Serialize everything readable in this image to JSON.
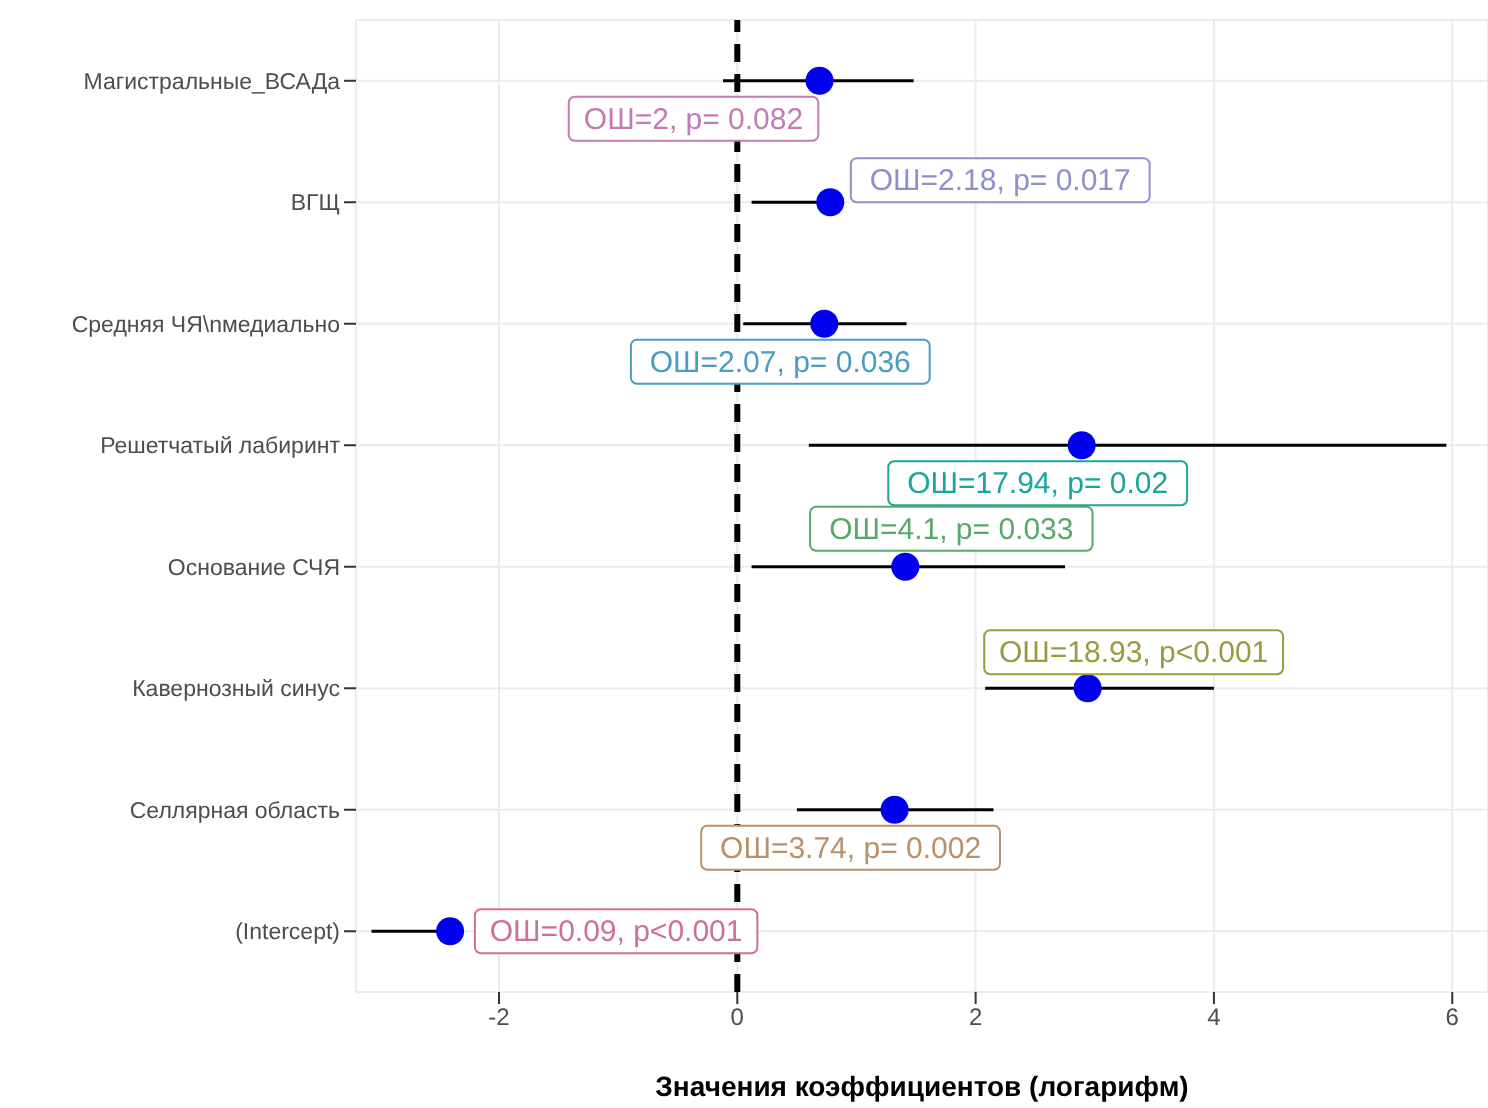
{
  "chart_data": {
    "type": "scatter",
    "orientation": "horizontal",
    "xlabel": "Значения коэффициентов (логарифм)",
    "categories": [
      "Магистральные_ВСАДа",
      "ВГЩ",
      "Средняя ЧЯ\\nмедиально",
      "Решетчатый лабиринт",
      "Основание СЧЯ",
      "Кавернозный синус",
      "Селлярная область",
      "(Intercept)"
    ],
    "values": [
      0.69,
      0.78,
      0.73,
      2.89,
      1.41,
      2.94,
      1.32,
      -2.41
    ],
    "errors": [
      [
        -0.12,
        1.48
      ],
      [
        0.12,
        0.78
      ],
      [
        0.05,
        1.42
      ],
      [
        0.6,
        5.95
      ],
      [
        0.12,
        2.75
      ],
      [
        2.08,
        4.0
      ],
      [
        0.5,
        2.15
      ],
      [
        -3.07,
        -2.41
      ]
    ],
    "color": "#0000ee",
    "marker": "circle",
    "xlim": [
      -3.2,
      6.3
    ],
    "xticks": [
      -2,
      0,
      2,
      4,
      6
    ],
    "grid": true,
    "ref_lines": [
      {
        "axis": "x",
        "value": 0,
        "color": "#000000",
        "line_style": "dashed"
      }
    ],
    "annotations": [
      {
        "text": "ОШ=2, p= 0.082",
        "x": 0.69,
        "y": "Магистральные_ВСАДа"
      },
      {
        "text": "ОШ=2.18, p= 0.017",
        "x": 0.78,
        "y": "ВГЩ"
      },
      {
        "text": "ОШ=2.07, p= 0.036",
        "x": 0.73,
        "y": "Средняя ЧЯ\\nмедиально"
      },
      {
        "text": "ОШ=17.94, p= 0.02",
        "x": 2.89,
        "y": "Решетчатый лабиринт"
      },
      {
        "text": "ОШ=4.1, p= 0.033",
        "x": 1.41,
        "y": "Основание СЧЯ"
      },
      {
        "text": "ОШ=18.93, p<0.001",
        "x": 2.94,
        "y": "Кавернозный синус"
      },
      {
        "text": "ОШ=3.74, p= 0.002",
        "x": 1.32,
        "y": "Селлярная область"
      },
      {
        "text": "ОШ=0.09, p<0.001",
        "x": -2.41,
        "y": "(Intercept)"
      }
    ]
  }
}
